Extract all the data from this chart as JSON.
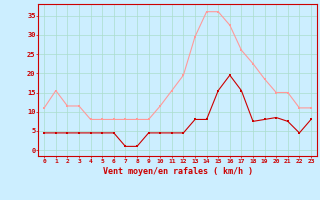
{
  "x": [
    0,
    1,
    2,
    3,
    4,
    5,
    6,
    7,
    8,
    9,
    10,
    11,
    12,
    13,
    14,
    15,
    16,
    17,
    18,
    19,
    20,
    21,
    22,
    23
  ],
  "wind_avg": [
    4.5,
    4.5,
    4.5,
    4.5,
    4.5,
    4.5,
    4.5,
    1,
    1,
    4.5,
    4.5,
    4.5,
    4.5,
    8,
    8,
    15.5,
    19.5,
    15.5,
    7.5,
    8,
    8.5,
    7.5,
    4.5,
    8
  ],
  "wind_gust": [
    11,
    15.5,
    11.5,
    11.5,
    8,
    8,
    8,
    8,
    8,
    8,
    11.5,
    15.5,
    19.5,
    29.5,
    36,
    36,
    32.5,
    26,
    22.5,
    18.5,
    15,
    15,
    11,
    11
  ],
  "avg_color": "#cc0000",
  "gust_color": "#ff9999",
  "bg_color": "#cceeff",
  "grid_color": "#aaddcc",
  "xlabel": "Vent moyen/en rafales ( km/h )",
  "tick_color": "#cc0000",
  "yticks": [
    0,
    5,
    10,
    15,
    20,
    25,
    30,
    35
  ],
  "ylim": [
    -1.5,
    38
  ],
  "xlim": [
    -0.5,
    23.5
  ]
}
